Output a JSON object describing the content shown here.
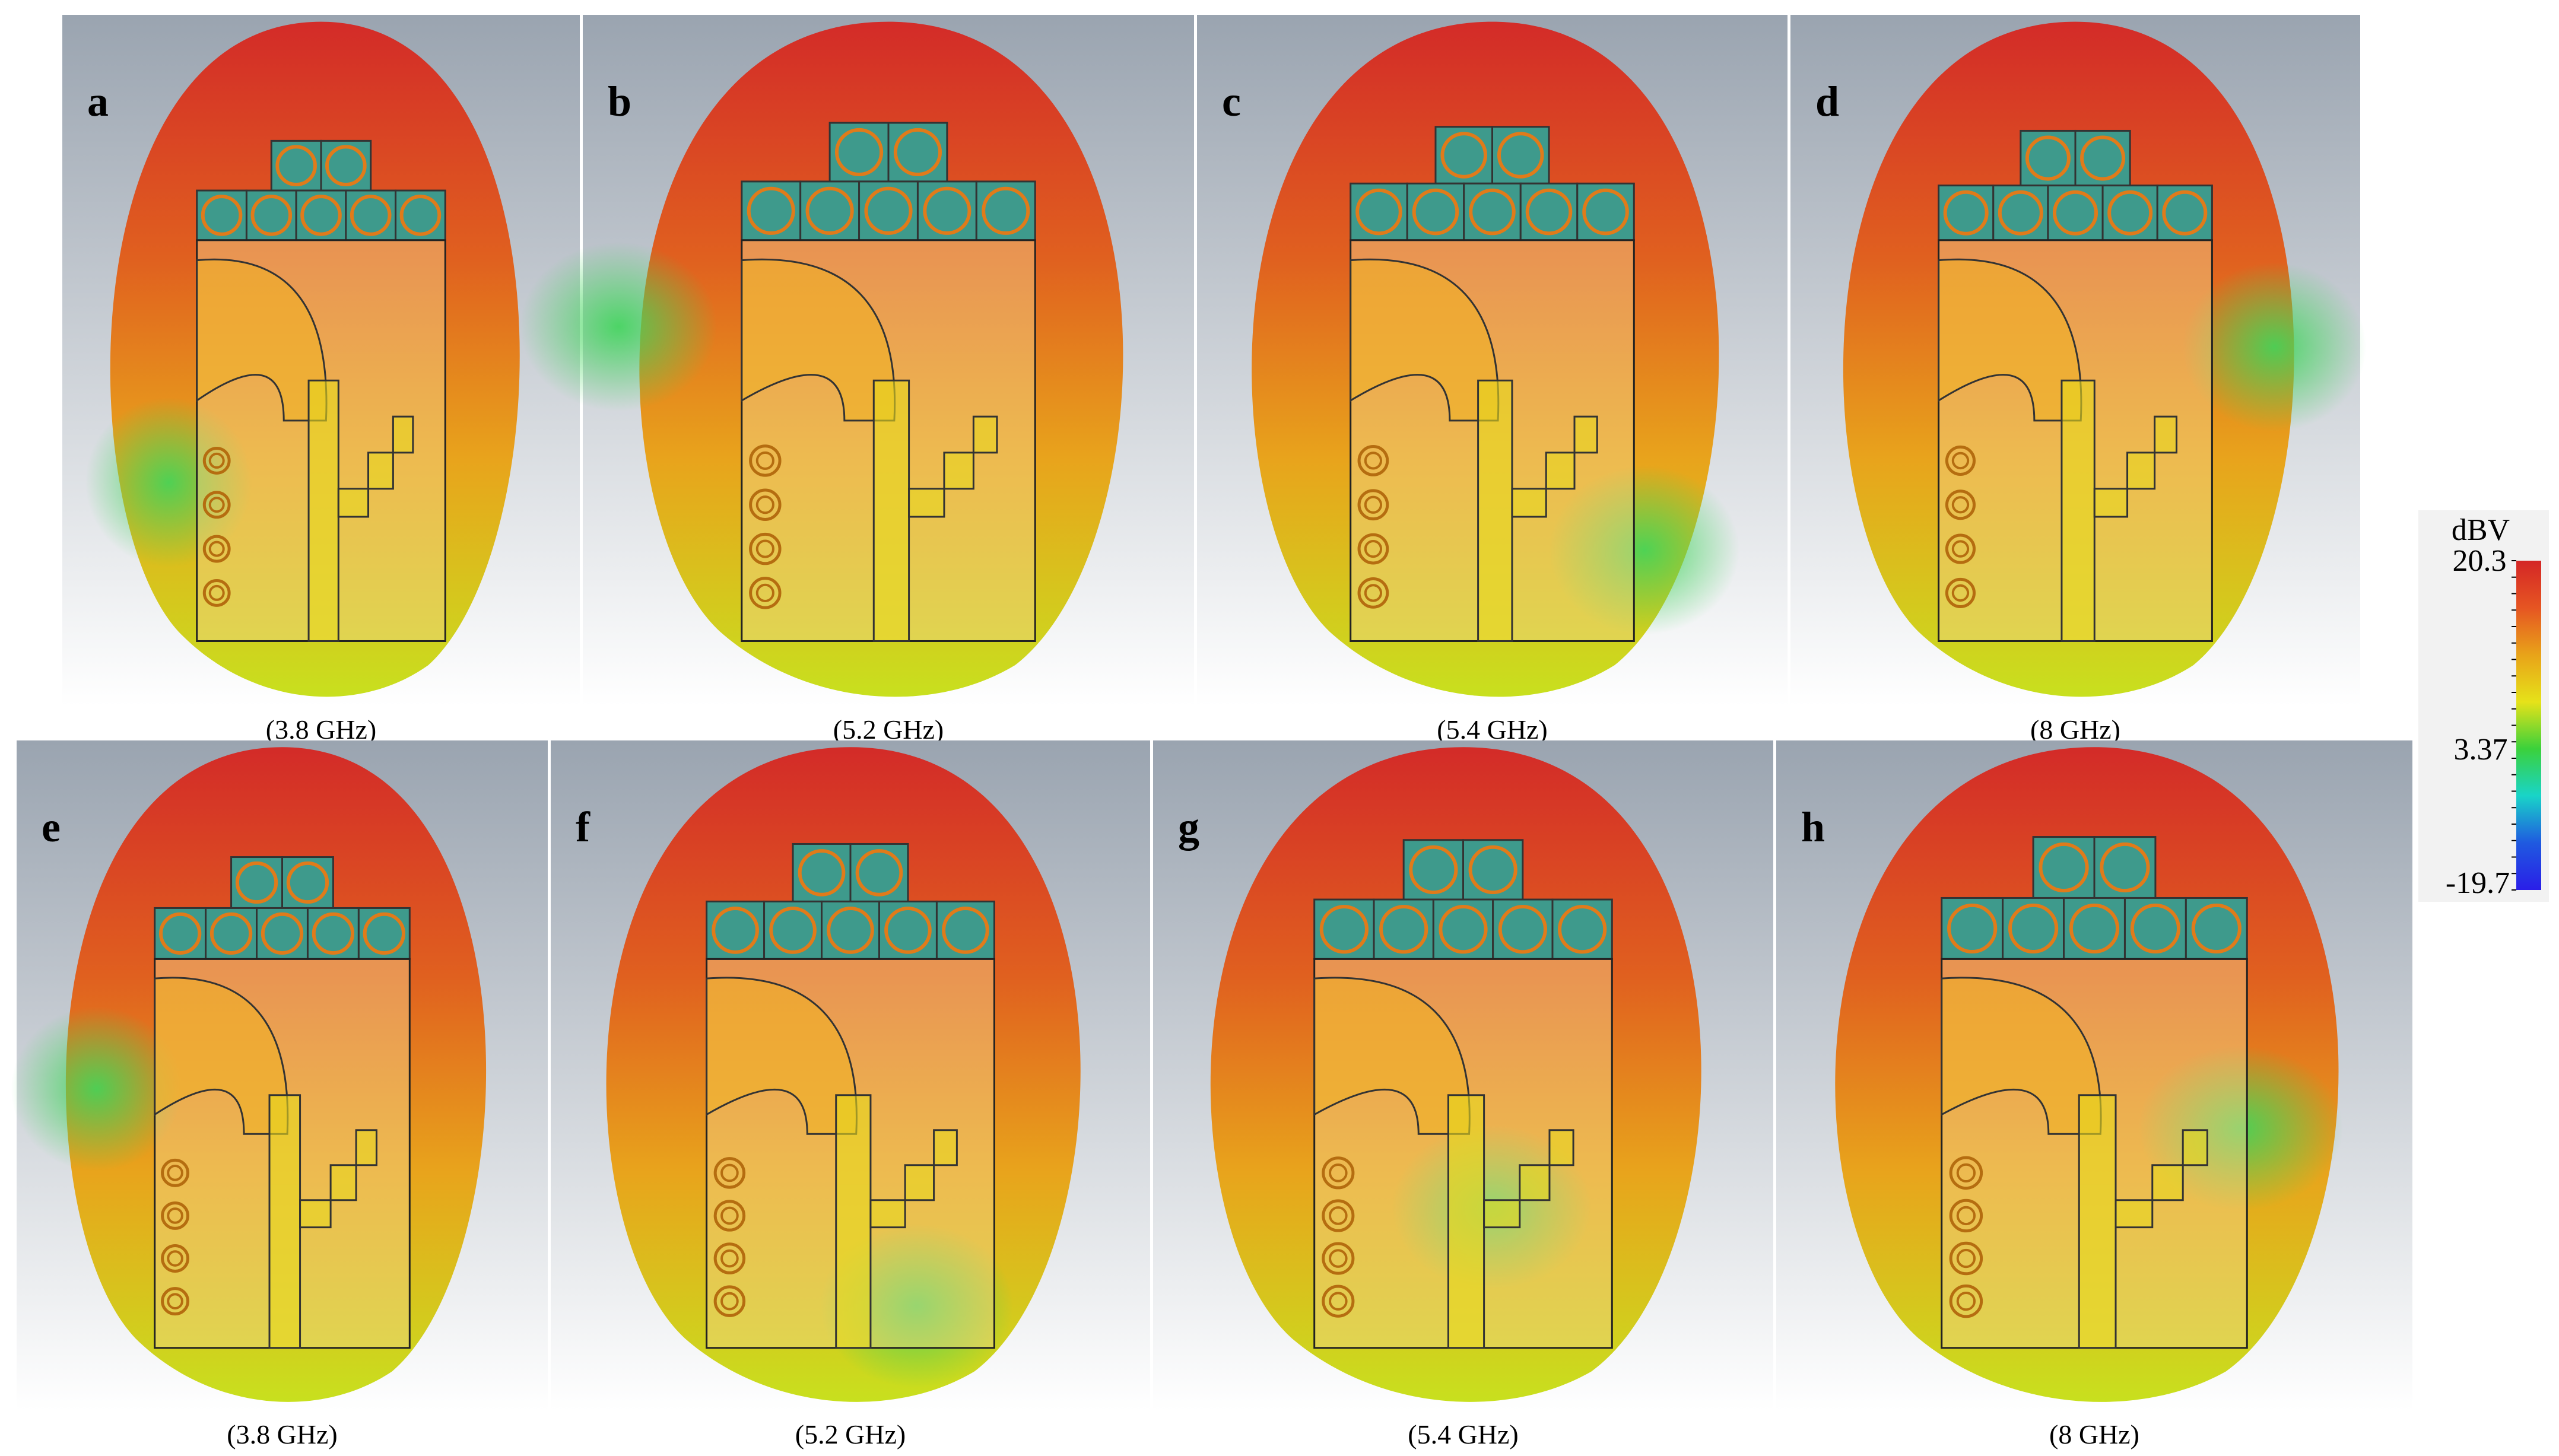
{
  "panels": [
    {
      "letter": "a",
      "caption": "(3.8 GHz)"
    },
    {
      "letter": "b",
      "caption": "(5.2 GHz)"
    },
    {
      "letter": "c",
      "caption": "(5.4 GHz)"
    },
    {
      "letter": "d",
      "caption": "(8 GHz)"
    },
    {
      "letter": "e",
      "caption": "(3.8 GHz)"
    },
    {
      "letter": "f",
      "caption": "(5.2 GHz)"
    },
    {
      "letter": "g",
      "caption": "(5.4 GHz)"
    },
    {
      "letter": "h",
      "caption": "(8 GHz)"
    }
  ],
  "colorbar": {
    "unit": "dBV",
    "max": "20.3",
    "mid": "3.37",
    "min": "-19.7",
    "colors": [
      "#d42626",
      "#e65522",
      "#e8a319",
      "#e6e219",
      "#3bd13b",
      "#19d4c8",
      "#1f5ae0",
      "#2a1ee8"
    ]
  },
  "colors": {
    "background_top": "#9aa4b0",
    "background_bottom": "#ffffff",
    "lobe_top": "#d32b28",
    "lobe_mid": "#e8a41c",
    "lobe_low": "#c8e01e",
    "patch_fill": "#f4d890",
    "cell_fill": "#3e9a8c",
    "cell_ring": "#e07b1a"
  }
}
